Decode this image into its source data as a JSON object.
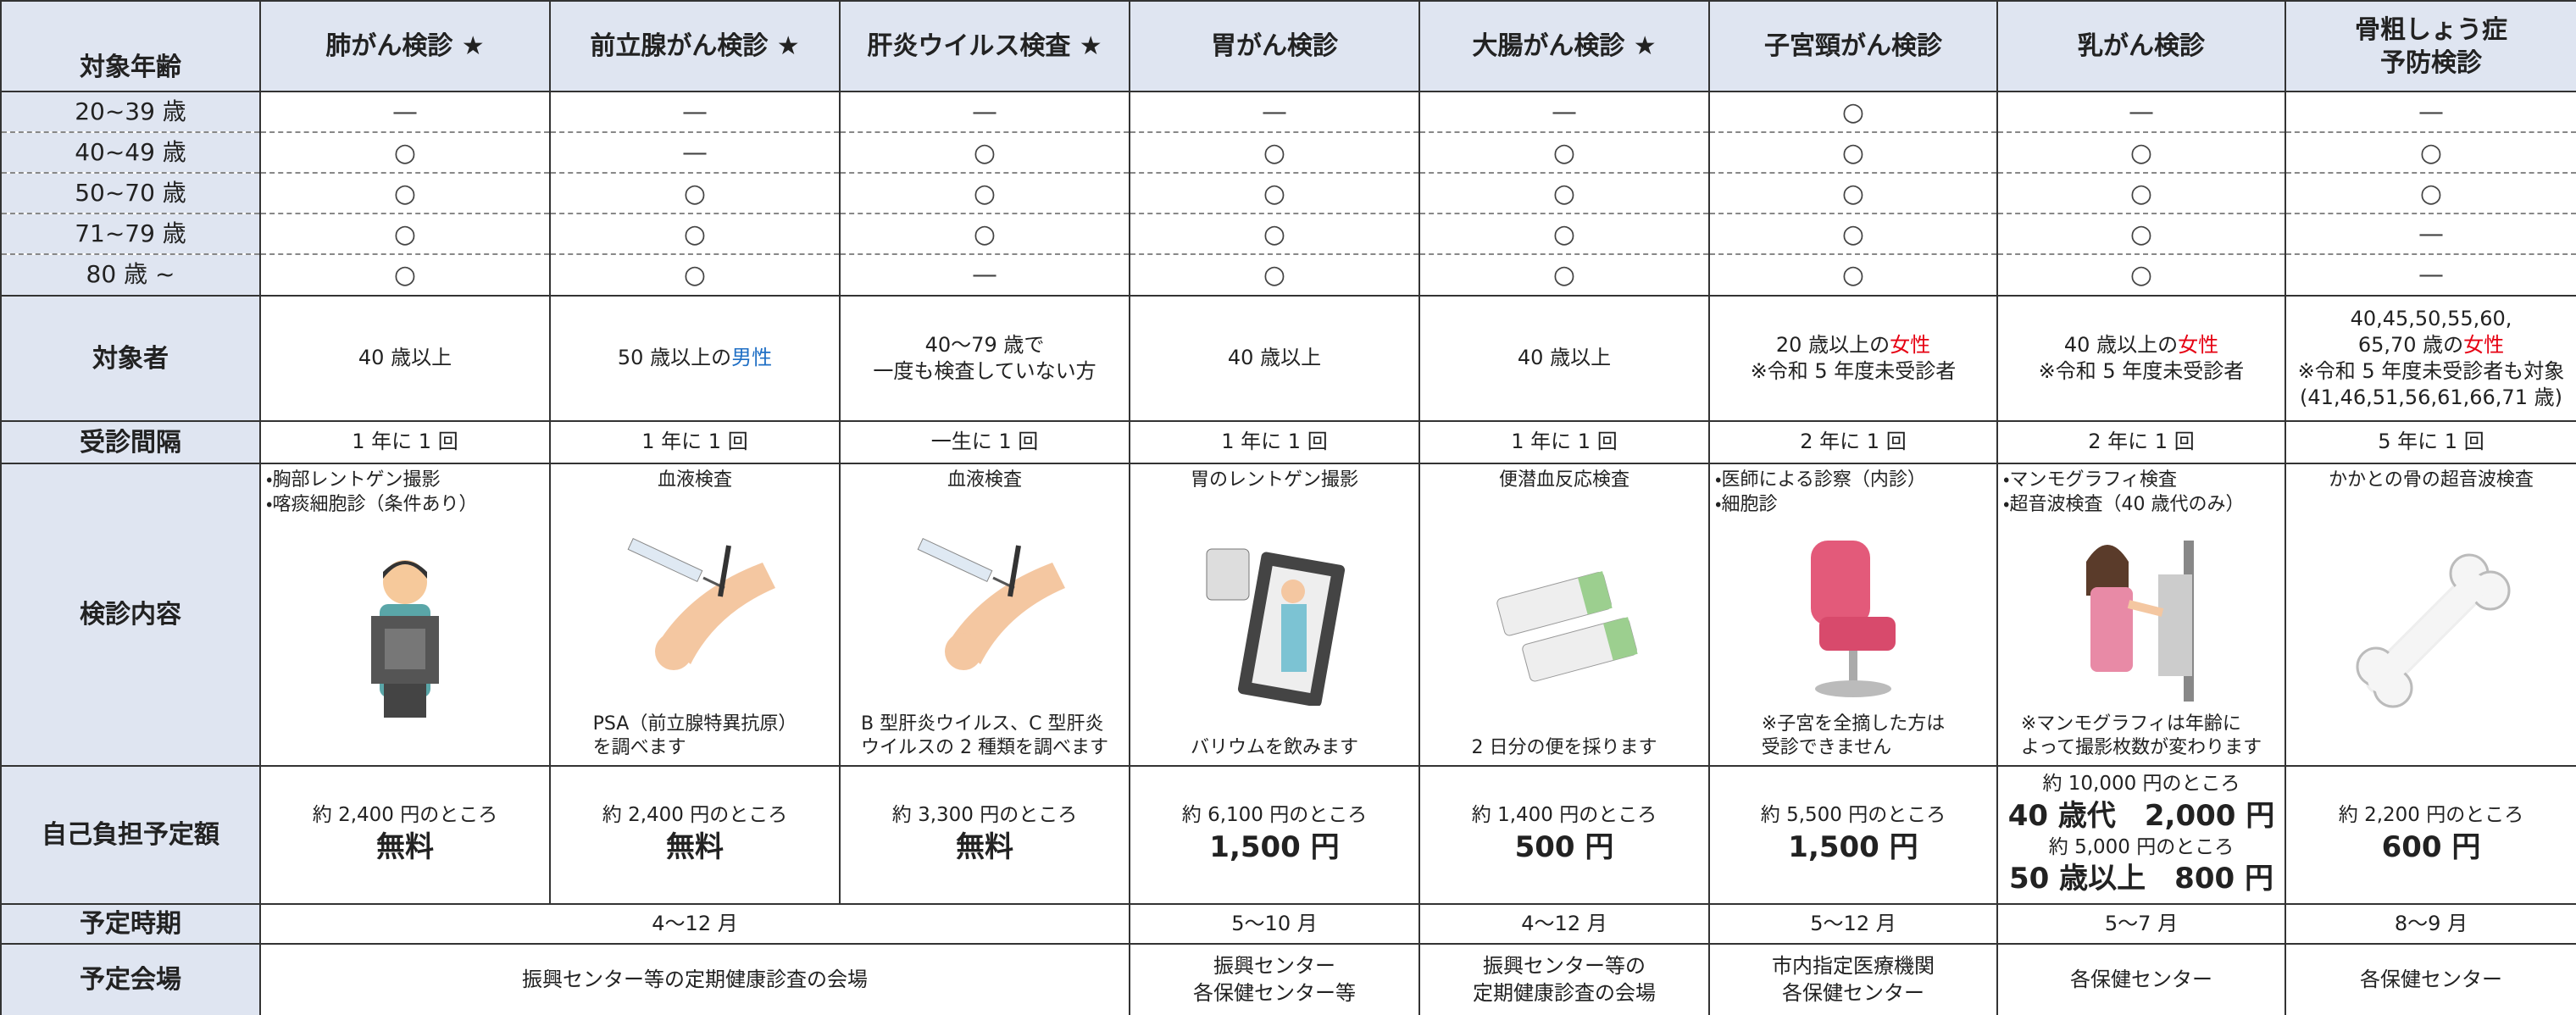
{
  "header": {
    "corner": "対象年齢",
    "columns": [
      "肺がん検診 ★",
      "前立腺がん検診 ★",
      "肝炎ウイルス検査 ★",
      "胃がん検診",
      "大腸がん検診 ★",
      "子宮頸がん検診",
      "乳がん検診",
      [
        "骨粗しょう症",
        "予防検診"
      ]
    ]
  },
  "ages": [
    {
      "label": "20~39 歳",
      "marks": [
        "—",
        "—",
        "—",
        "—",
        "—",
        "○",
        "—",
        "—"
      ]
    },
    {
      "label": "40~49 歳",
      "marks": [
        "○",
        "—",
        "○",
        "○",
        "○",
        "○",
        "○",
        "○"
      ]
    },
    {
      "label": "50~70 歳",
      "marks": [
        "○",
        "○",
        "○",
        "○",
        "○",
        "○",
        "○",
        "○"
      ]
    },
    {
      "label": "71~79 歳",
      "marks": [
        "○",
        "○",
        "○",
        "○",
        "○",
        "○",
        "○",
        "—"
      ]
    },
    {
      "label": "80 歳 ~",
      "marks": [
        "○",
        "○",
        "—",
        "○",
        "○",
        "○",
        "○",
        "—"
      ]
    }
  ],
  "target": {
    "label": "対象者",
    "cells": [
      [
        [
          "40 歳以上"
        ]
      ],
      [
        [
          "50 歳以上の",
          {
            "text": "男性",
            "color": "#1f6fc5"
          }
        ]
      ],
      [
        [
          "40～79 歳で"
        ],
        [
          "一度も検査していない方"
        ]
      ],
      [
        [
          "40 歳以上"
        ]
      ],
      [
        [
          "40 歳以上"
        ]
      ],
      [
        [
          "20 歳以上の",
          {
            "text": "女性",
            "color": "#e60012"
          }
        ],
        [
          "※令和 5 年度未受診者"
        ]
      ],
      [
        [
          "40 歳以上の",
          {
            "text": "女性",
            "color": "#e60012"
          }
        ],
        [
          "※令和 5 年度未受診者"
        ]
      ],
      [
        [
          "40,45,50,55,60,"
        ],
        [
          "65,70 歳の",
          {
            "text": "女性",
            "color": "#e60012"
          }
        ],
        [
          "※令和 5 年度未受診者も対象"
        ],
        [
          "(41,46,51,56,61,66,71 歳)"
        ]
      ]
    ]
  },
  "interval": {
    "label": "受診間隔",
    "cells": [
      "1 年に 1 回",
      "1 年に 1 回",
      "一生に 1 回",
      "1 年に 1 回",
      "1 年に 1 回",
      "2 年に 1 回",
      "2 年に 1 回",
      "5 年に 1 回"
    ]
  },
  "content": {
    "label": "検診内容",
    "cells": [
      {
        "top": [
          "・胸部レントゲン撮影",
          "・喀痰細胞診（条件あり）"
        ]
      },
      {
        "top": [
          "血液検査"
        ],
        "bottom": [
          "PSA（前立腺特異抗原）",
          "を調べます"
        ]
      },
      {
        "top": [
          "血液検査"
        ],
        "bottom": [
          "B 型肝炎ウイルス、C 型肝炎",
          "ウイルスの 2 種類を調べます"
        ]
      },
      {
        "top": [
          "胃のレントゲン撮影"
        ],
        "bottom": [
          "バリウムを飲みます"
        ]
      },
      {
        "top": [
          "便潜血反応検査"
        ],
        "bottom": [
          "2 日分の便を採ります"
        ]
      },
      {
        "top": [
          "・医師による診察（内診）",
          "・細胞診"
        ],
        "bottom": [
          "※子宮を全摘した方は",
          "受診できません"
        ]
      },
      {
        "top": [
          "・マンモグラフィ検査",
          "・超音波検査（40 歳代のみ）"
        ],
        "bottom": [
          "※マンモグラフィは年齢に",
          "よって撮影枚数が変わります"
        ]
      },
      {
        "top": [
          "かかとの骨の超音波検査"
        ]
      }
    ]
  },
  "fee": {
    "label": "自己負担予定額",
    "cells": [
      {
        "note": "約 2,400 円のところ",
        "price": "無料"
      },
      {
        "note": "約 2,400 円のところ",
        "price": "無料"
      },
      {
        "note": "約 3,300 円のところ",
        "price": "無料"
      },
      {
        "note": "約 6,100 円のところ",
        "price": "1,500 円"
      },
      {
        "note": "約 1,400 円のところ",
        "price": "500 円"
      },
      {
        "note": "約 5,500 円のところ",
        "price": "1,500 円"
      },
      [
        {
          "note": "約 10,000 円のところ",
          "price": "40 歳代　2,000 円"
        },
        {
          "note": "約 5,000 円のところ",
          "price": "50 歳以上　800 円"
        }
      ],
      {
        "note": "約 2,200 円のところ",
        "price": "600 円"
      }
    ]
  },
  "period": {
    "label": "予定時期",
    "cells": [
      "4～12 月",
      null,
      null,
      "5～10 月",
      "4～12 月",
      "5～12 月",
      "5～7 月",
      "8～9 月"
    ]
  },
  "venue": {
    "label": "予定会場",
    "cells": [
      [
        "振興センター等の定期健康診査の会場"
      ],
      null,
      null,
      [
        "振興センター",
        "各保健センター等"
      ],
      [
        "振興センター等の",
        "定期健康診査の会場"
      ],
      [
        "市内指定医療機関",
        "各保健センター"
      ],
      [
        "各保健センター"
      ],
      [
        "各保健センター"
      ]
    ]
  }
}
